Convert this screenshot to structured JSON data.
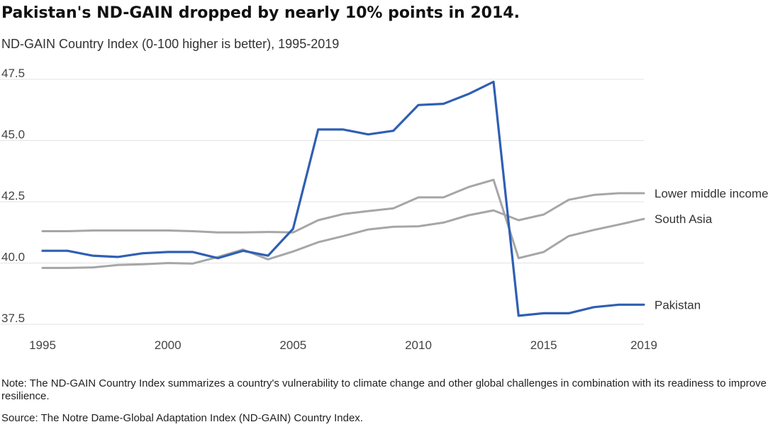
{
  "chart_data": {
    "type": "line",
    "title": "Pakistan's ND-GAIN dropped by nearly 10% points in 2014.",
    "subtitle": "ND-GAIN Country Index (0-100 higher is better), 1995-2019",
    "note": "Note: The ND-GAIN Country Index summarizes a country's vulnerability to climate change and other global challenges in combination with its readiness to improve resilience.",
    "source": "Source: The Notre Dame-Global Adaptation Index (ND-GAIN) Country Index.",
    "xlim": [
      1995,
      2019
    ],
    "ylim": [
      37.5,
      47.5
    ],
    "x_ticks": [
      1995,
      2000,
      2005,
      2010,
      2015,
      2019
    ],
    "y_ticks": [
      37.5,
      40.0,
      42.5,
      45.0,
      47.5
    ],
    "y_tick_labels": [
      "37.5",
      "40.0",
      "42.5",
      "45.0",
      "47.5"
    ],
    "grid": "horizontal",
    "x": [
      1995,
      1996,
      1997,
      1998,
      1999,
      2000,
      2001,
      2002,
      2003,
      2004,
      2005,
      2006,
      2007,
      2008,
      2009,
      2010,
      2011,
      2012,
      2013,
      2014,
      2015,
      2016,
      2017,
      2018,
      2019
    ],
    "series": [
      {
        "name": "Pakistan",
        "color": "#2f5fb3",
        "values": [
          40.5,
          40.5,
          40.3,
          40.25,
          40.4,
          40.45,
          40.45,
          40.2,
          40.5,
          40.3,
          41.4,
          45.45,
          45.45,
          45.25,
          45.4,
          46.45,
          46.5,
          46.9,
          47.4,
          37.85,
          37.95,
          37.95,
          38.2,
          38.3,
          38.3
        ]
      },
      {
        "name": "Lower middle income",
        "color": "#a6a6a6",
        "values": [
          41.3,
          41.3,
          41.33,
          41.33,
          41.33,
          41.33,
          41.3,
          41.25,
          41.25,
          41.27,
          41.25,
          41.75,
          42.0,
          42.12,
          42.23,
          42.68,
          42.68,
          43.1,
          43.4,
          40.2,
          40.45,
          41.1,
          41.35,
          41.57,
          41.8
        ]
      },
      {
        "name": "South Asia",
        "color": "#a6a6a6",
        "values": [
          39.8,
          39.8,
          39.82,
          39.92,
          39.95,
          40.0,
          39.98,
          40.25,
          40.55,
          40.15,
          40.47,
          40.85,
          41.1,
          41.37,
          41.48,
          41.5,
          41.65,
          41.95,
          42.15,
          41.75,
          41.98,
          42.58,
          42.78,
          42.85,
          42.85
        ]
      }
    ],
    "series_labels": [
      {
        "series": "Lower middle income",
        "text": "Lower middle income",
        "at_value": 42.85
      },
      {
        "series": "South Asia",
        "text": "South Asia",
        "at_value": 41.8
      },
      {
        "series": "Pakistan",
        "text": "Pakistan",
        "at_value": 38.3
      }
    ]
  }
}
